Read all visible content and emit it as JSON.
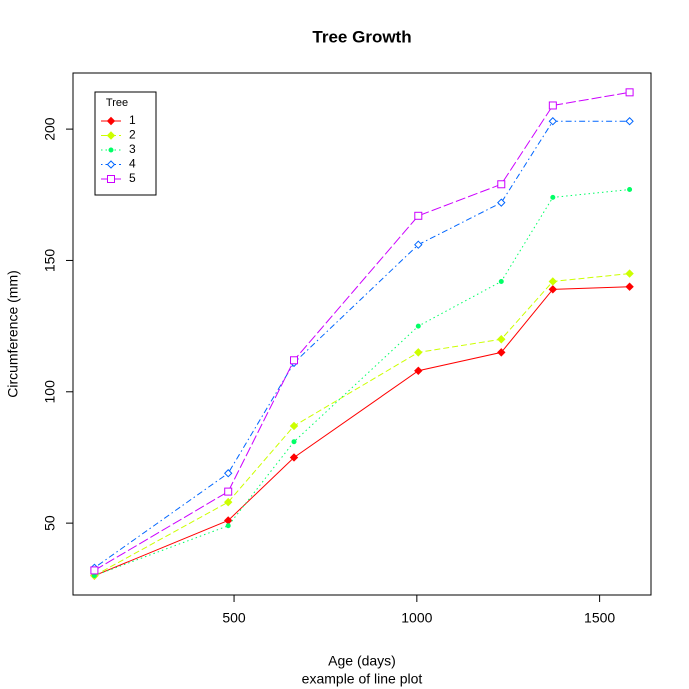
{
  "chart_data": {
    "type": "line",
    "title": "Tree Growth",
    "subtitle": "example of line plot",
    "x_label": "Age (days)",
    "y_label": "Circumference (mm)",
    "x": [
      118,
      484,
      664,
      1004,
      1231,
      1372,
      1582
    ],
    "series": [
      {
        "name": "1",
        "color": "#ff0000",
        "marker": "filled-diamond",
        "dash": "solid",
        "values": [
          30,
          51,
          75,
          108,
          115,
          139,
          140
        ]
      },
      {
        "name": "2",
        "color": "#ccff00",
        "marker": "filled-diamond",
        "dash": "dashed",
        "values": [
          30,
          58,
          87,
          115,
          120,
          142,
          145
        ]
      },
      {
        "name": "3",
        "color": "#00ff66",
        "marker": "dot",
        "dash": "dotted",
        "values": [
          30,
          49,
          81,
          125,
          142,
          174,
          177
        ]
      },
      {
        "name": "4",
        "color": "#0066ff",
        "marker": "open-diamond",
        "dash": "dotdash",
        "values": [
          33,
          69,
          111,
          156,
          172,
          203,
          203
        ]
      },
      {
        "name": "5",
        "color": "#cc00ff",
        "marker": "open-square",
        "dash": "longdash",
        "values": [
          32,
          62,
          112,
          167,
          179,
          209,
          214
        ]
      }
    ],
    "legend_title": "Tree",
    "legend": "top-left",
    "xlim": [
      59.44,
      1640.56
    ],
    "xticks": [
      500,
      1000,
      1500
    ],
    "ylim": [
      22.64,
      221.36
    ],
    "yticks": [
      50,
      100,
      150,
      200
    ]
  }
}
